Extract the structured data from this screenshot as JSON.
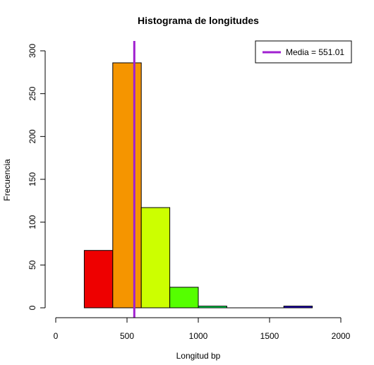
{
  "chart_data": {
    "type": "bar",
    "title": "Histograma de longitudes",
    "xlabel": "Longitud bp",
    "ylabel": "Frecuencia",
    "xlim": [
      0,
      2000
    ],
    "ylim": [
      0,
      300
    ],
    "x_ticks": [
      "0",
      "500",
      "1000",
      "1500",
      "2000"
    ],
    "y_ticks": [
      "0",
      "50",
      "100",
      "150",
      "200",
      "250",
      "300"
    ],
    "bins": [
      {
        "from": 200,
        "to": 400,
        "count": 67,
        "color": "#ee0000"
      },
      {
        "from": 400,
        "to": 600,
        "count": 286,
        "color": "#f59500"
      },
      {
        "from": 600,
        "to": 800,
        "count": 117,
        "color": "#ccff00"
      },
      {
        "from": 800,
        "to": 1000,
        "count": 24,
        "color": "#55ff00"
      },
      {
        "from": 1000,
        "to": 1200,
        "count": 2,
        "color": "#00ee55"
      },
      {
        "from": 1200,
        "to": 1400,
        "count": 0,
        "color": "#00e5a0"
      },
      {
        "from": 1400,
        "to": 1600,
        "count": 0,
        "color": "#0088ee"
      },
      {
        "from": 1600,
        "to": 1800,
        "count": 2,
        "color": "#2200cc"
      }
    ],
    "mean_line": {
      "value": 551.01,
      "color": "#a020d0"
    },
    "legend": {
      "label": "Media = 551.01",
      "position": "top-right"
    },
    "grid": false
  }
}
